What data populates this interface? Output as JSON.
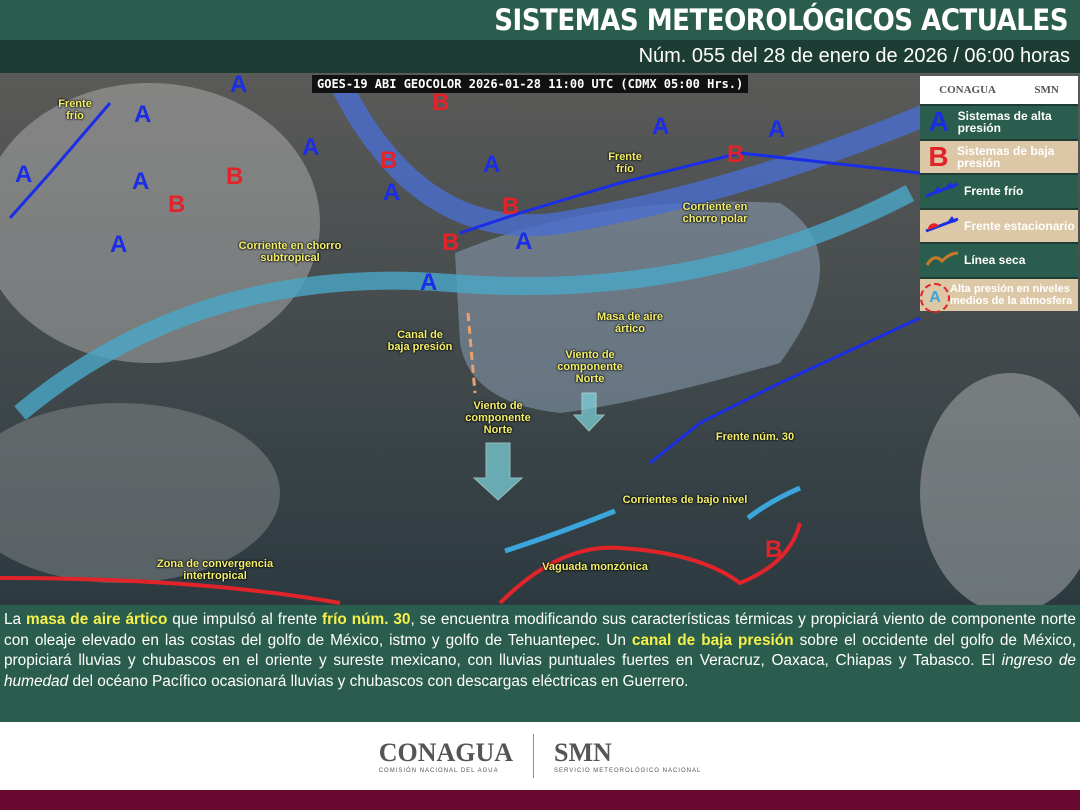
{
  "header": {
    "title": "SISTEMAS METEOROLÓGICOS ACTUALES",
    "subtitle": "Núm. 055 del 28 de enero de 2026 / 06:00 horas"
  },
  "map": {
    "satellite_caption": "GOES-19 ABI GEOCOLOR 2026-01-28 11:00 UTC (CDMX  05:00 Hrs.)",
    "high_symbol": "A",
    "low_symbol": "B",
    "labels": {
      "frente_frio_nw": "Frente frío",
      "frente_frio_ne": "Frente frío",
      "subtropical": "Corriente en chorro subtropical",
      "polar": "Corriente en chorro polar",
      "canal": "Canal de baja presión",
      "masa": "Masa de aire ártico",
      "viento1": "Viento de componente Norte",
      "viento2": "Viento de componente Norte",
      "frente30": "Frente núm. 30",
      "corrientes": "Corrientes de bajo nivel",
      "zci": "Zona de convergencia intertropical",
      "vaguada": "Vaguada monzónica"
    }
  },
  "legend": {
    "logos": [
      "CONAGUA",
      "SMN"
    ],
    "items": [
      {
        "symbol": "A",
        "label": "Sistemas de alta presión",
        "color": "#1a2ee8"
      },
      {
        "symbol": "B",
        "label": "Sistemas de baja presión",
        "color": "#e0242a"
      },
      {
        "icon": "cold-front",
        "label": "Frente frío"
      },
      {
        "icon": "stationary-front",
        "label": "Frente estacionario"
      },
      {
        "icon": "dry-line",
        "label": "Línea seca"
      },
      {
        "symbol": "A",
        "label": "Alta presión en niveles medios de la atmosfera"
      }
    ]
  },
  "summary": {
    "p1": "La ",
    "b1": "masa de aire ártico",
    "p2": " que impulsó al frente ",
    "b2": "frío núm. 30",
    "p3": ", se encuentra modificando sus características térmicas y propiciará viento de componente norte con oleaje elevado en las costas del golfo de México, istmo y golfo de Tehuantepec. Un ",
    "b3": "canal de baja presión",
    "p4": " sobre el occidente del golfo de México, propiciará lluvias y chubascos en el oriente y sureste mexicano, con lluvias puntuales fuertes en Veracruz, Oaxaca, Chiapas y Tabasco. El ",
    "i1": "ingreso de humedad",
    "p5": " del océano Pacífico ocasionará lluvias y chubascos con descargas eléctricas en Guerrero."
  },
  "footer": {
    "conagua": "CONAGUA",
    "conagua_sub": "COMISIÓN NACIONAL DEL AGUA",
    "smn": "SMN",
    "smn_sub": "SERVICIO METEOROLÓGICO NACIONAL"
  },
  "colors": {
    "header": "#2b5d4e",
    "subheader": "#1d3d34",
    "highlight": "#f5f04a",
    "bottom_bar": "#6b0a31",
    "high": "#1a2ee8",
    "low": "#e0242a"
  }
}
